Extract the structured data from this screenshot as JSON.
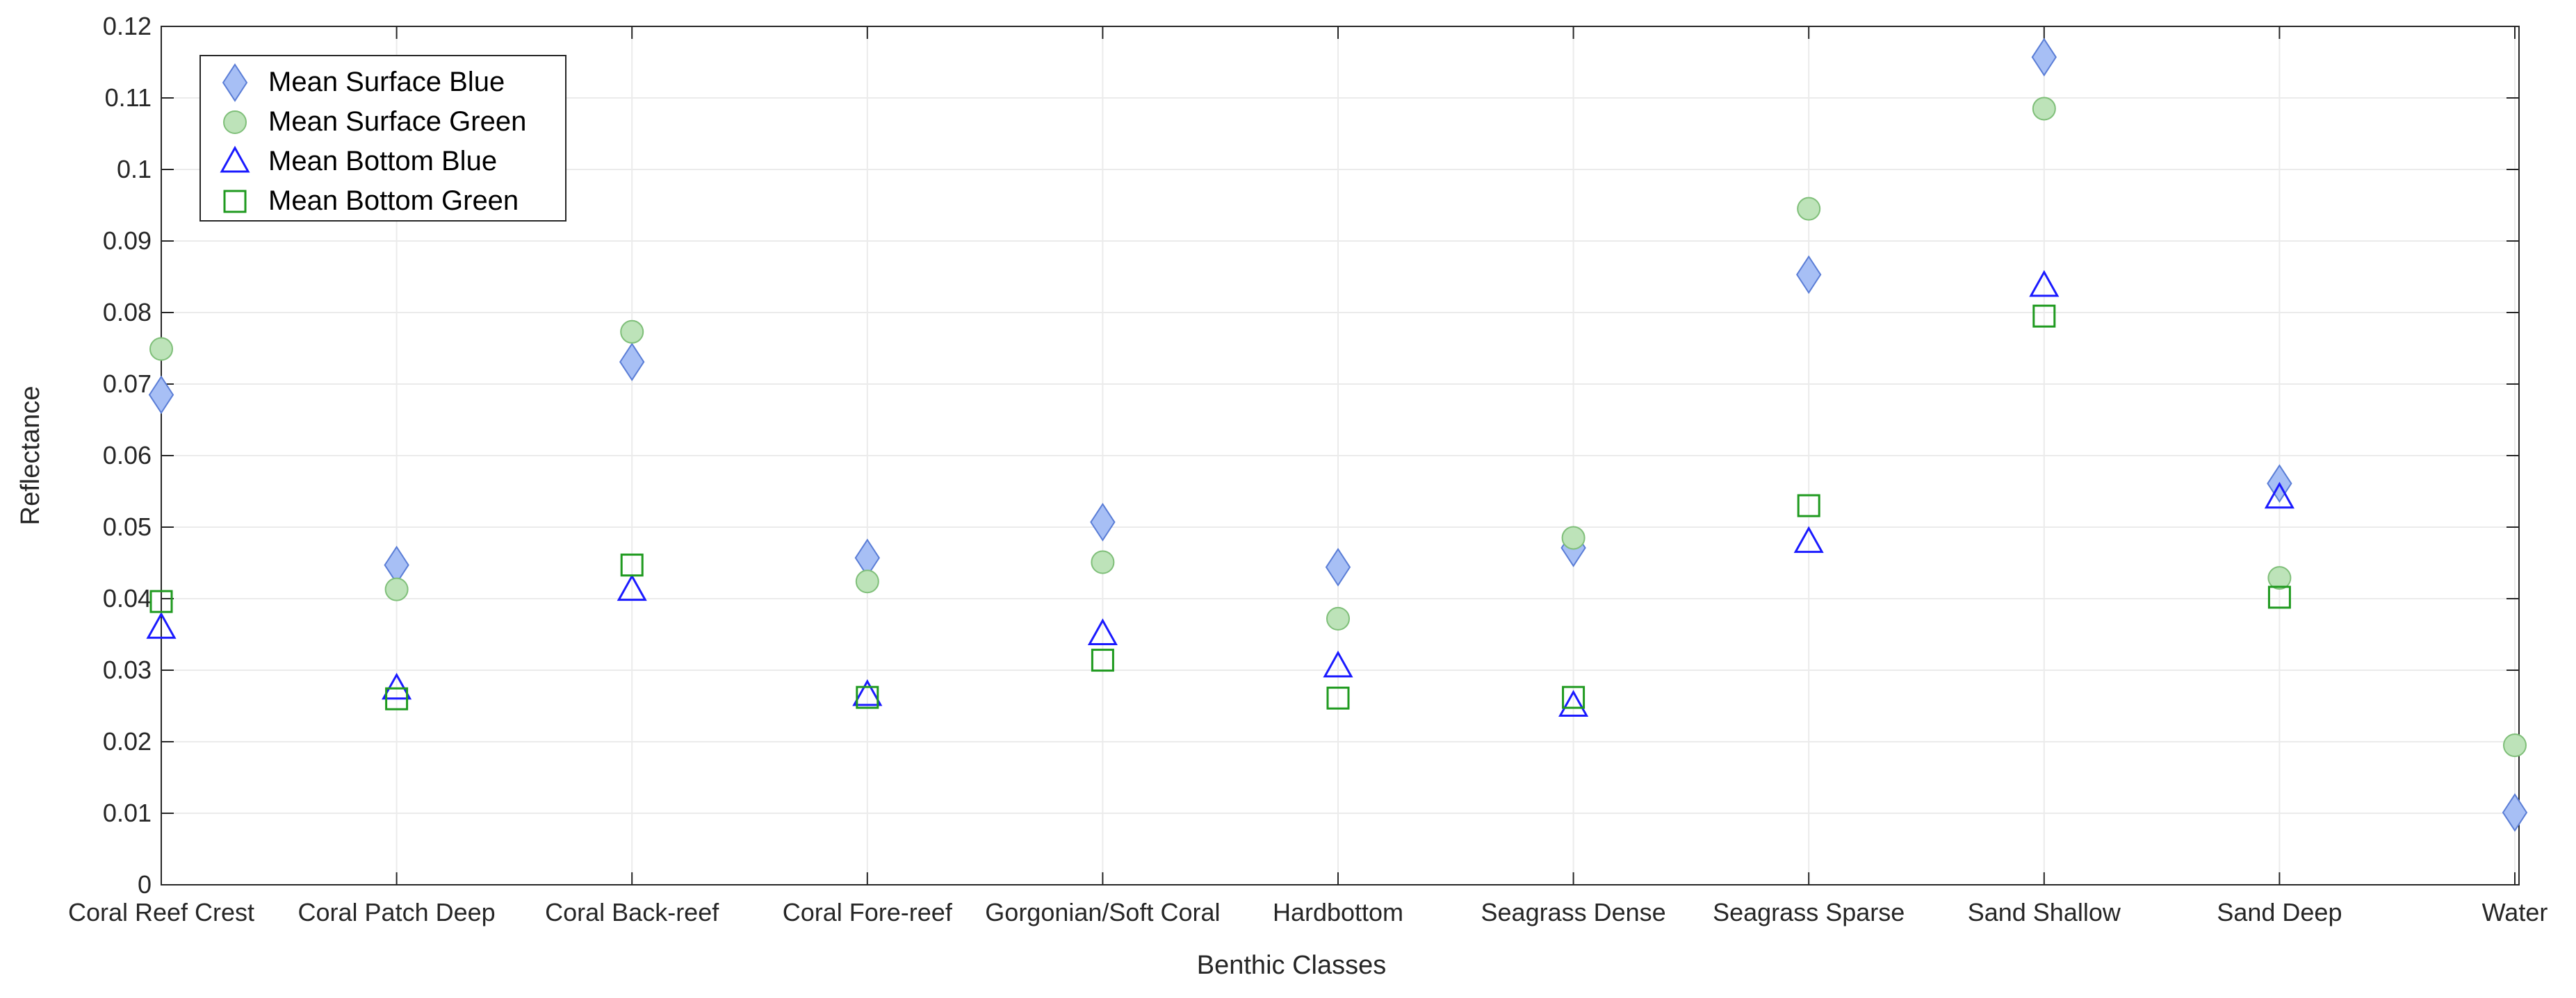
{
  "chart_data": {
    "type": "scatter",
    "title": "",
    "xlabel": "Benthic Classes",
    "ylabel": "Reflectance",
    "ylim": [
      0,
      0.12
    ],
    "yticks": [
      0,
      0.01,
      0.02,
      0.03,
      0.04,
      0.05,
      0.06,
      0.07,
      0.08,
      0.09,
      0.1,
      0.11,
      0.12
    ],
    "ytick_labels": [
      "0",
      "0.01",
      "0.02",
      "0.03",
      "0.04",
      "0.05",
      "0.06",
      "0.07",
      "0.08",
      "0.09",
      "0.1",
      "0.11",
      "0.12"
    ],
    "grid": true,
    "legend_position": "top-left",
    "categories": [
      "Coral Reef Crest",
      "Coral Patch Deep",
      "Coral Back-reef",
      "Coral Fore-reef",
      "Gorgonian/Soft Coral",
      "Hardbottom",
      "Seagrass Dense",
      "Seagrass Sparse",
      "Sand Shallow",
      "Sand Deep",
      "Water"
    ],
    "series": [
      {
        "name": "Mean Surface Blue",
        "marker": "diamond",
        "color": "#a7bff5",
        "edge_color": "#5a7dd6",
        "values": [
          0.0685,
          0.0447,
          0.0731,
          0.0457,
          0.0507,
          0.0444,
          0.0471,
          0.0853,
          0.1157,
          0.0561,
          0.0101
        ]
      },
      {
        "name": "Mean Surface Green",
        "marker": "circle",
        "color": "#bde3b9",
        "edge_color": "#7fbf79",
        "values": [
          0.0749,
          0.0413,
          0.0773,
          0.0424,
          0.0451,
          0.0372,
          0.0485,
          0.0945,
          0.1085,
          0.0429,
          0.0195
        ]
      },
      {
        "name": "Mean Bottom Blue",
        "marker": "triangle",
        "color": "#1a1aff",
        "values": [
          0.0359,
          0.0274,
          0.0412,
          0.0265,
          0.035,
          0.0305,
          0.025,
          0.0479,
          0.0837,
          0.0541,
          null
        ]
      },
      {
        "name": "Mean Bottom Green",
        "marker": "square",
        "color": "#1f9a1f",
        "values": [
          0.0396,
          0.026,
          0.0447,
          0.0262,
          0.0314,
          0.0261,
          0.0262,
          0.053,
          0.0795,
          0.0402,
          null
        ]
      }
    ]
  }
}
